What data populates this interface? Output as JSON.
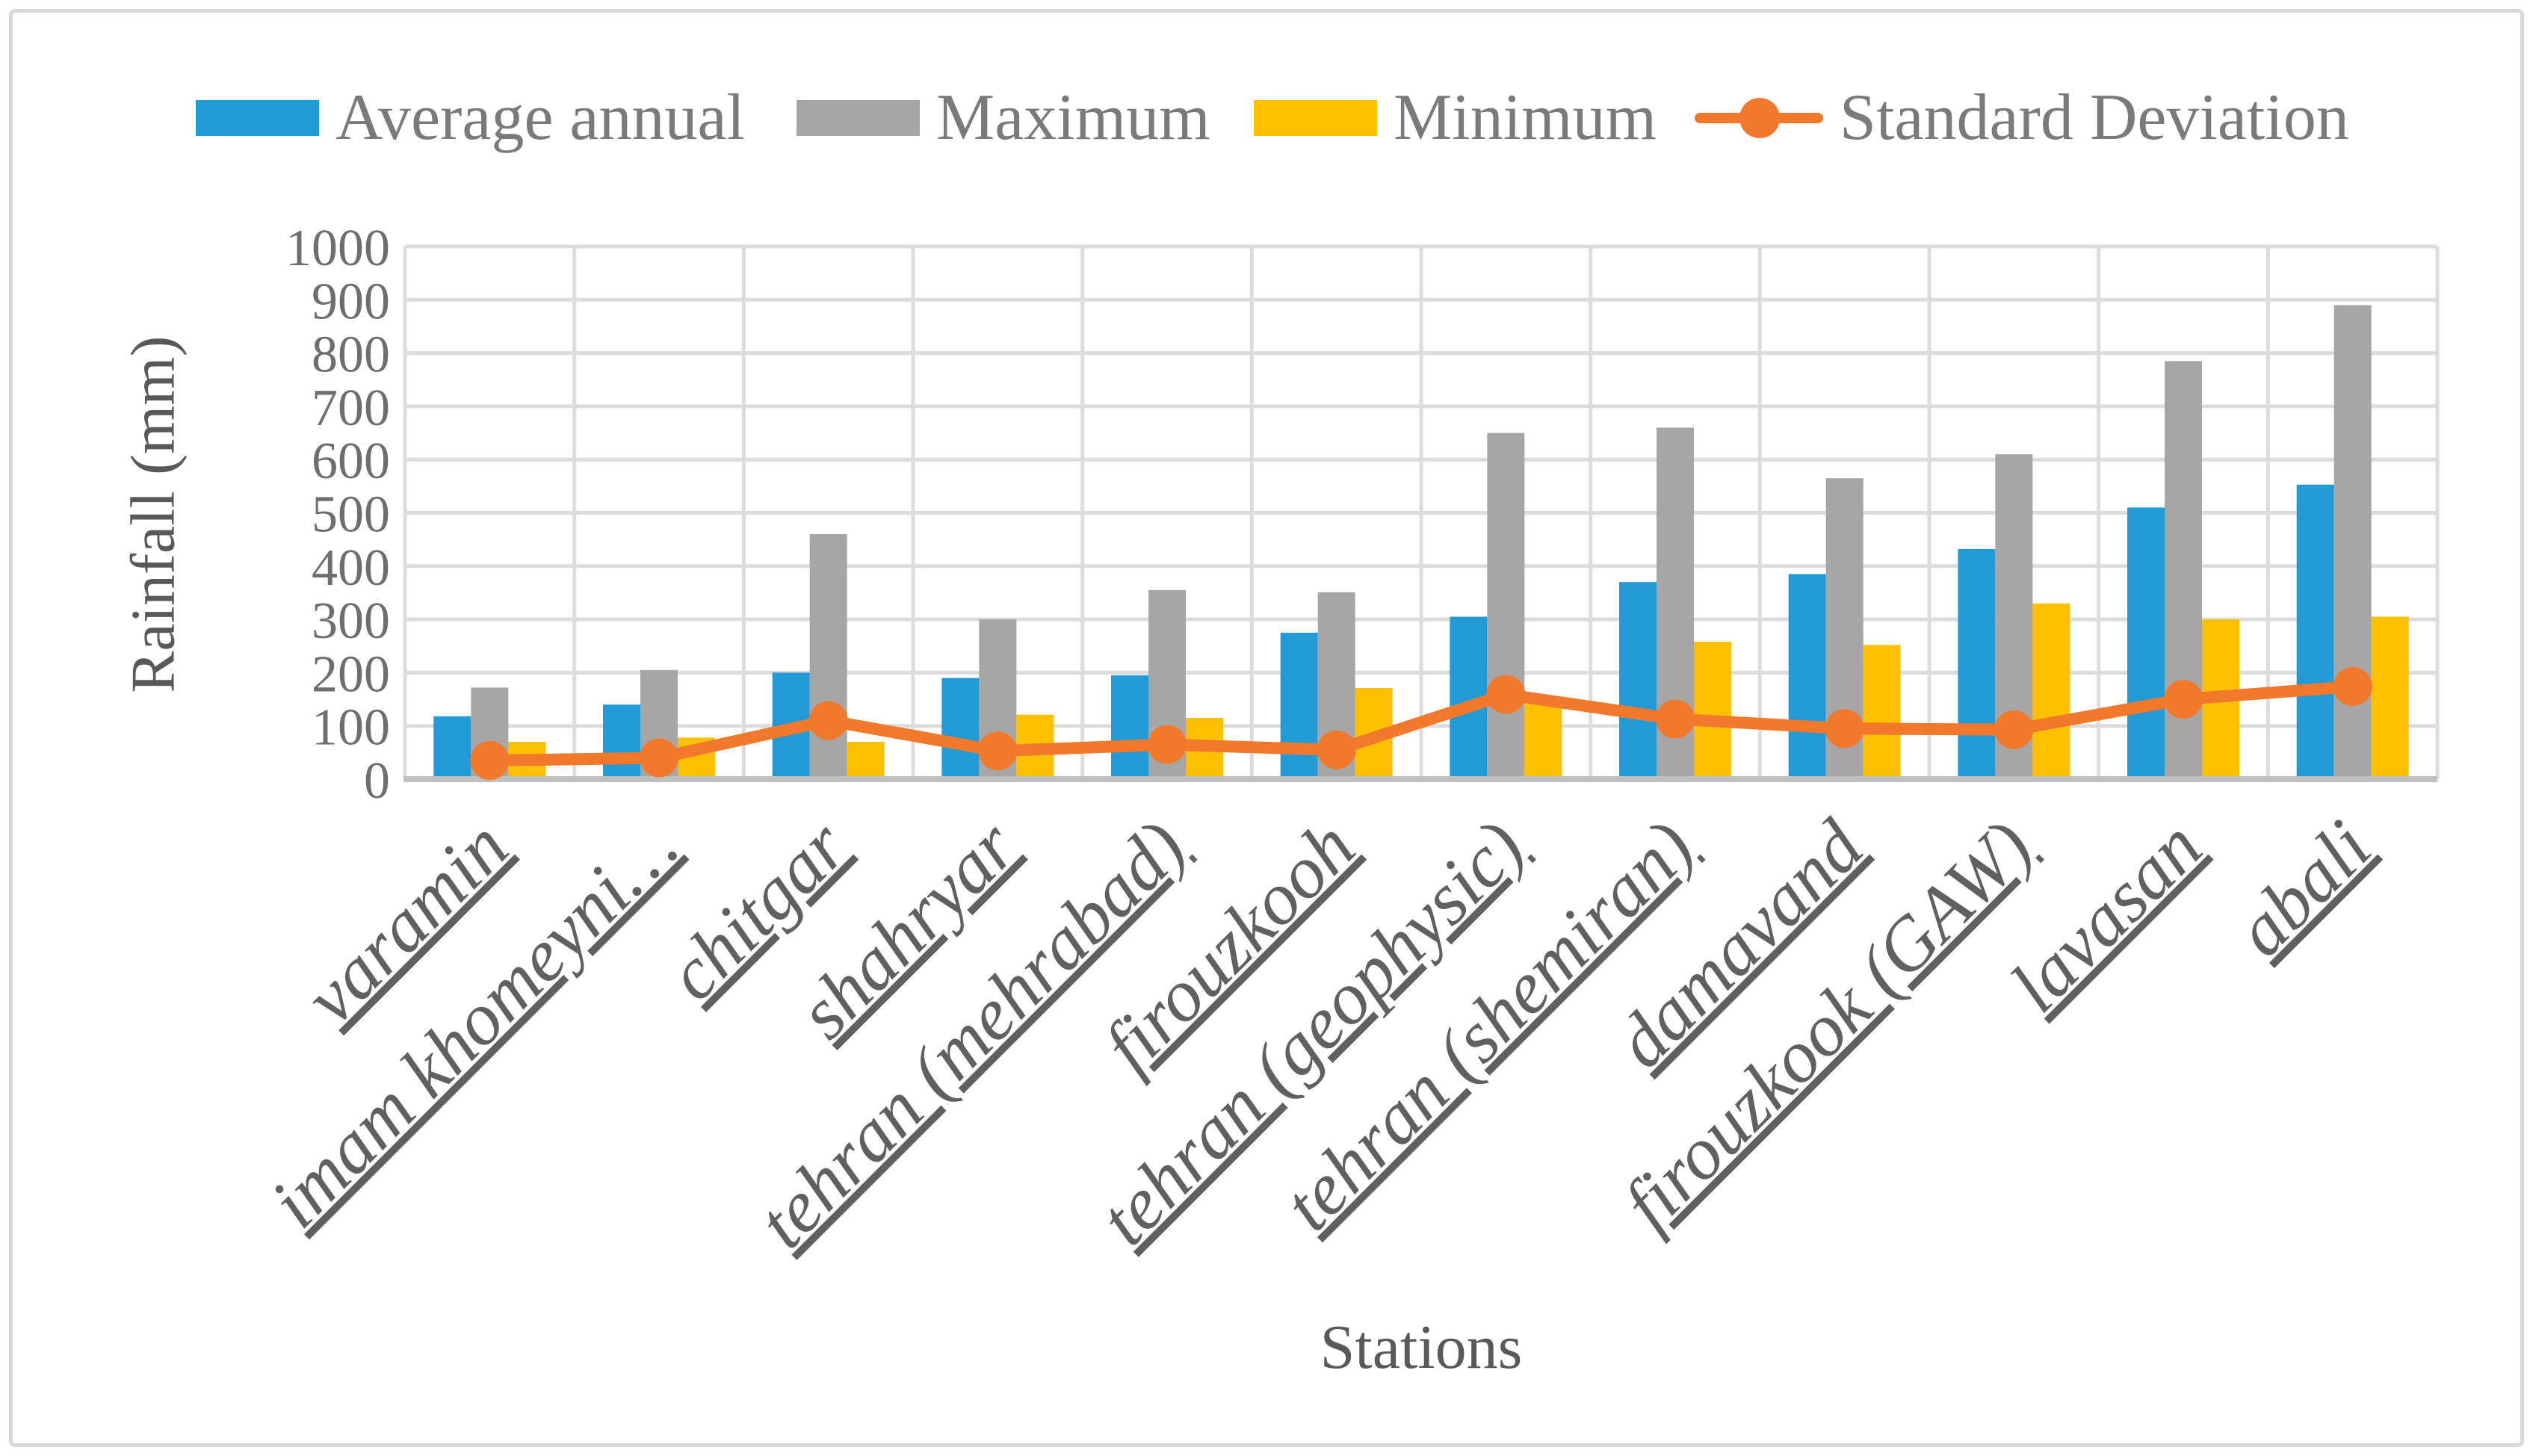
{
  "chart_data": {
    "type": "bar",
    "subtype": "grouped-bars-with-line-overlay",
    "title": "",
    "xlabel": "Stations",
    "ylabel": "Rainfall (mm)",
    "ylim": [
      0,
      1000
    ],
    "ytick_step": 100,
    "grid": true,
    "legend_position": "top",
    "categories": [
      "varamin",
      "imam khomeyni…",
      "chitgar",
      "shahryar",
      "tehran (mehrabad)",
      "firouzkooh",
      "tehran (geophysic)",
      "tehran (shemiran)",
      "damavand",
      "firouzkook (GAW)",
      "lavasan",
      "abali"
    ],
    "series": [
      {
        "name": "Average annual",
        "type": "bar",
        "color": "#229AD6",
        "values": [
          118,
          140,
          200,
          190,
          195,
          275,
          305,
          370,
          385,
          432,
          510,
          553
        ]
      },
      {
        "name": "Maximum",
        "type": "bar",
        "color": "#A6A6A6",
        "values": [
          172,
          205,
          460,
          300,
          355,
          351,
          650,
          660,
          565,
          610,
          785,
          890
        ]
      },
      {
        "name": "Minimum",
        "type": "bar",
        "color": "#FFC000",
        "values": [
          70,
          78,
          70,
          121,
          115,
          171,
          145,
          258,
          252,
          330,
          300,
          305
        ]
      },
      {
        "name": "Standard Deviation",
        "type": "line",
        "color": "#F2792B",
        "values": [
          35,
          40,
          110,
          53,
          65,
          55,
          159,
          113,
          95,
          93,
          150,
          174
        ]
      }
    ],
    "style": {
      "grid_color": "#DCDCDC",
      "axis_line_color": "#BFBFBF",
      "tick_label_color": "#6E6E6E",
      "category_label_color": "#606060",
      "axis_title_color": "#595959",
      "legend_text_color": "#7A7A7A",
      "frame_border_color": "#D9D9D9",
      "background": "#FFFFFF"
    }
  }
}
